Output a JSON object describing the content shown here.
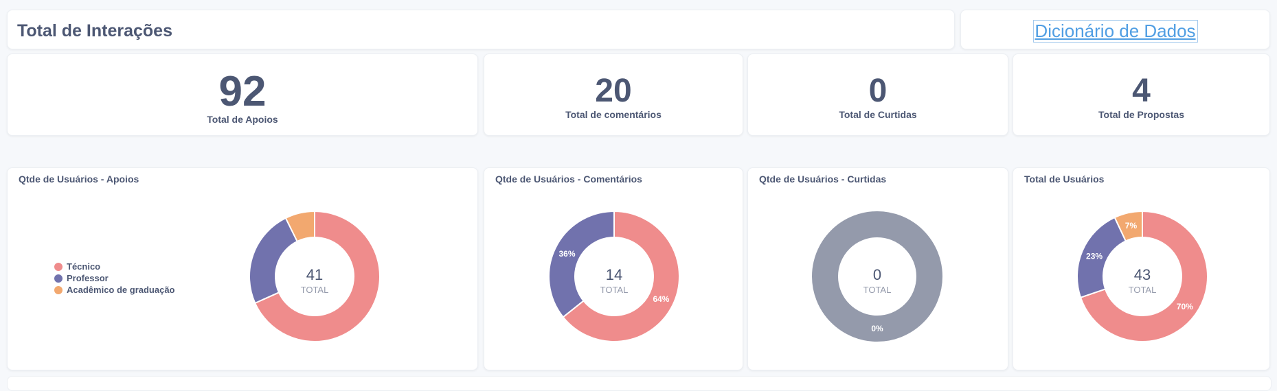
{
  "header": {
    "title": "Total de Interações",
    "link": "Dicionário de Dados"
  },
  "metrics": [
    {
      "value": "92",
      "label": "Total de Apoios"
    },
    {
      "value": "20",
      "label": "Total de comentários"
    },
    {
      "value": "0",
      "label": "Total de Curtidas"
    },
    {
      "value": "4",
      "label": "Total de Propostas"
    }
  ],
  "legend": [
    {
      "label": "Técnico",
      "color": "#ef8c8c"
    },
    {
      "label": "Professor",
      "color": "#7172ad"
    },
    {
      "label": "Acadêmico de graduação",
      "color": "#f2a86f"
    }
  ],
  "colors": {
    "tecnico": "#ef8c8c",
    "professor": "#7172ad",
    "academico": "#f2a86f",
    "empty": "#949aab"
  },
  "chart_data": [
    {
      "type": "pie",
      "title": "Qtde de Usuários - Apoios",
      "categories": [
        "Técnico",
        "Professor",
        "Acadêmico de graduação"
      ],
      "values": [
        28,
        10,
        3
      ],
      "total_value": "41",
      "total_label": "TOTAL",
      "slice_labels": [
        "",
        "",
        ""
      ],
      "legend": "left"
    },
    {
      "type": "pie",
      "title": "Qtde de Usuários - Comentários",
      "categories": [
        "Técnico",
        "Professor"
      ],
      "values": [
        9,
        5
      ],
      "total_value": "14",
      "total_label": "TOTAL",
      "slice_labels": [
        "64%",
        "36%"
      ]
    },
    {
      "type": "pie",
      "title": "Qtde de Usuários - Curtidas",
      "categories": [
        ""
      ],
      "values": [
        0
      ],
      "total_value": "0",
      "total_label": "TOTAL",
      "slice_labels": [
        "0%"
      ]
    },
    {
      "type": "pie",
      "title": "Total de Usuários",
      "categories": [
        "Técnico",
        "Professor",
        "Acadêmico de graduação"
      ],
      "values": [
        30,
        10,
        3
      ],
      "total_value": "43",
      "total_label": "TOTAL",
      "slice_labels": [
        "70%",
        "23%",
        "7%"
      ]
    }
  ]
}
